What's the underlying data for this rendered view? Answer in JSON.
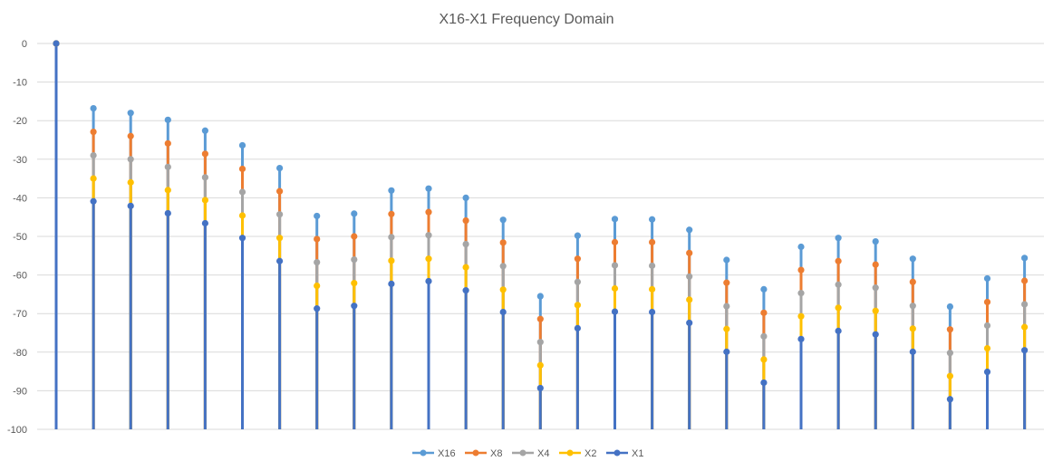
{
  "chart_data": {
    "type": "line",
    "title": "X16-X1 Frequency Domain",
    "xlabel": "",
    "ylabel": "",
    "ylim": [
      -100,
      0
    ],
    "yticks": [
      "0",
      "-10",
      "-20",
      "-30",
      "-40",
      "-50",
      "-60",
      "-70",
      "-80",
      "-90",
      "-100"
    ],
    "ytick_values": [
      0,
      -10,
      -20,
      -30,
      -40,
      -50,
      -60,
      -70,
      -80,
      -90,
      -100
    ],
    "grid": true,
    "legend": "bottom",
    "colors": {
      "X16": "#5b9bd5",
      "X8": "#ed7d31",
      "X4": "#a5a5a5",
      "X2": "#ffc000",
      "X1": "#4472c4"
    },
    "series": [
      {
        "name": "X16",
        "values": [
          0,
          -16.8,
          -18,
          -19.8,
          -22.6,
          -26.4,
          -32.3,
          -44.7,
          -44.1,
          -38.1,
          -37.6,
          -40,
          -45.7,
          -65.5,
          -49.8,
          -45.5,
          -45.6,
          -48.3,
          -56.1,
          -63.7,
          -52.7,
          -50.4,
          -51.3,
          -55.8,
          -68.2,
          -60.9,
          -55.6
        ]
      },
      {
        "name": "X8",
        "values": [
          0,
          -22.9,
          -24,
          -25.9,
          -28.6,
          -32.5,
          -38.3,
          -50.7,
          -50,
          -44.2,
          -43.7,
          -45.9,
          -51.6,
          -71.4,
          -55.8,
          -51.5,
          -51.5,
          -54.3,
          -62,
          -69.8,
          -58.7,
          -56.4,
          -57.3,
          -61.8,
          -74.1,
          -67,
          -61.5
        ]
      },
      {
        "name": "X4",
        "values": [
          0,
          -29,
          -30,
          -32,
          -34.7,
          -38.5,
          -44.3,
          -56.7,
          -56,
          -50.2,
          -49.7,
          -52,
          -57.7,
          -77.4,
          -61.8,
          -57.5,
          -57.6,
          -60.4,
          -68.1,
          -75.9,
          -64.7,
          -62.5,
          -63.3,
          -68,
          -80.2,
          -73.1,
          -67.6
        ]
      },
      {
        "name": "X2",
        "values": [
          0,
          -35,
          -36,
          -38,
          -40.6,
          -44.6,
          -50.4,
          -62.8,
          -62.1,
          -56.3,
          -55.8,
          -58,
          -63.8,
          -83.4,
          -67.8,
          -63.5,
          -63.7,
          -66.4,
          -74,
          -81.9,
          -70.7,
          -68.5,
          -69.3,
          -73.9,
          -86.2,
          -79,
          -73.5
        ]
      },
      {
        "name": "X1",
        "values": [
          0,
          -40.9,
          -42.1,
          -44,
          -46.6,
          -50.4,
          -56.4,
          -68.7,
          -68,
          -62.3,
          -61.6,
          -64,
          -69.6,
          -89.3,
          -73.8,
          -69.5,
          -69.6,
          -72.4,
          -79.9,
          -87.9,
          -76.6,
          -74.5,
          -75.4,
          -79.9,
          -92.2,
          -85.1,
          -79.5
        ]
      }
    ]
  }
}
